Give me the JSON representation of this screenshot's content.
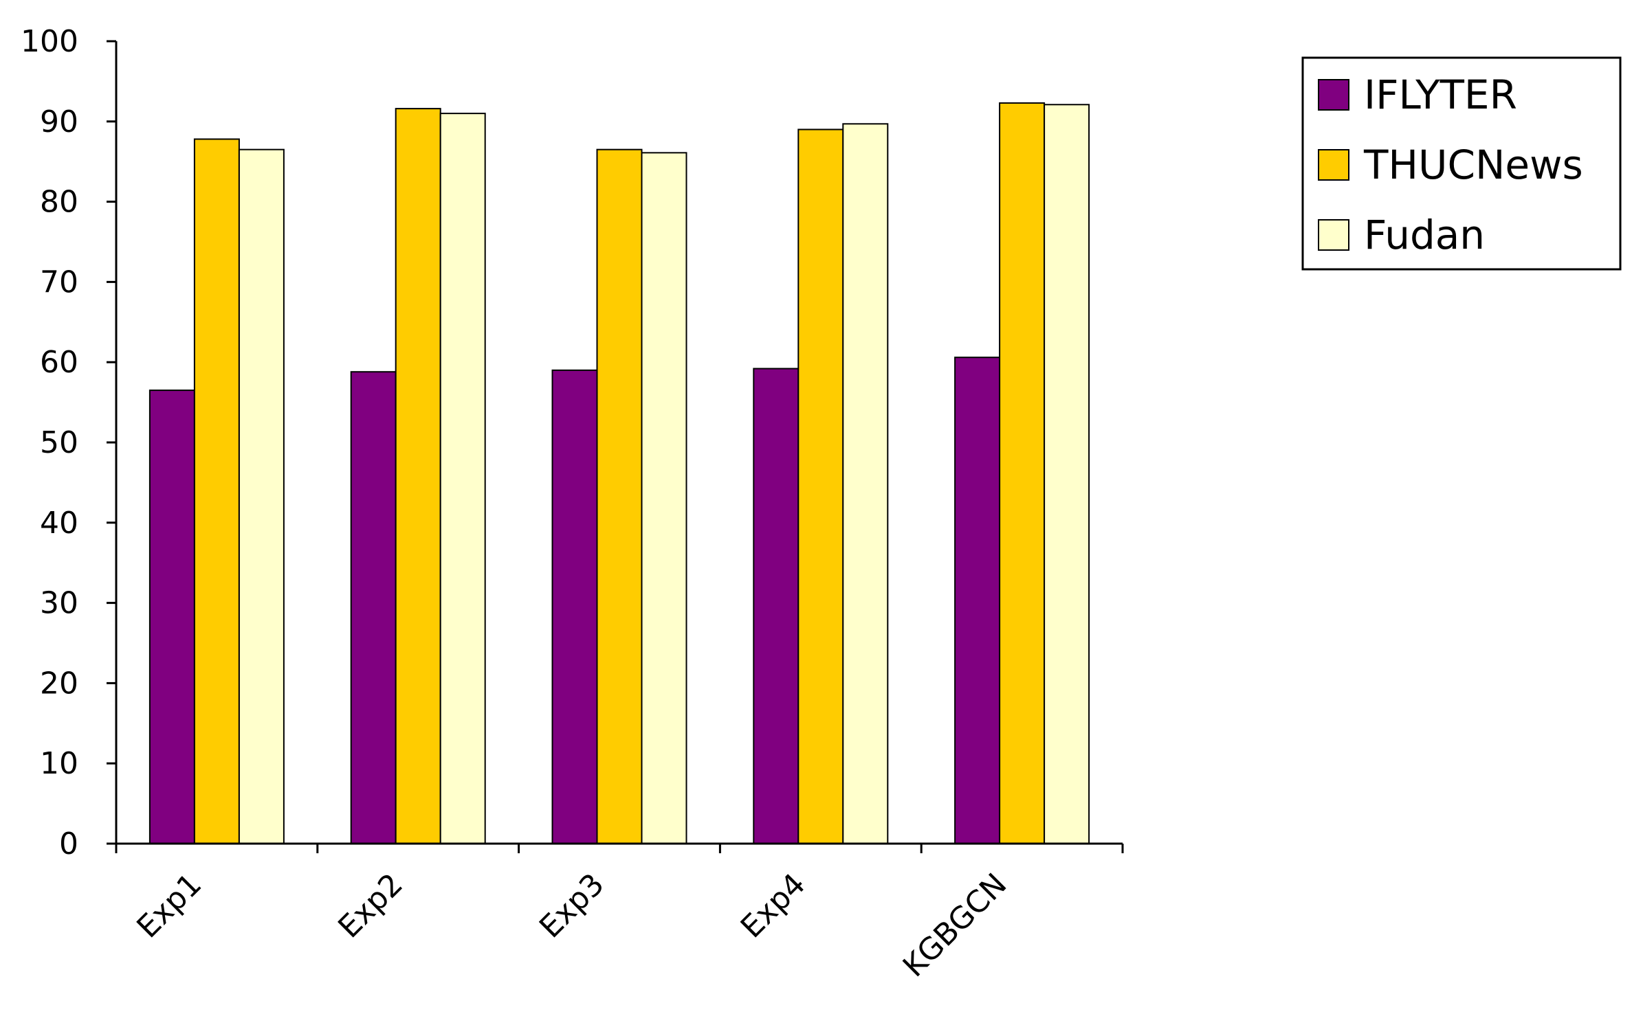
{
  "chart_data": {
    "type": "bar",
    "title": "",
    "xlabel": "",
    "ylabel": "",
    "categories": [
      "Exp1",
      "Exp2",
      "Exp3",
      "Exp4",
      "KGBGCN"
    ],
    "series": [
      {
        "name": "IFLYTER",
        "color": "#800080",
        "values": [
          56.5,
          58.8,
          59.0,
          59.2,
          60.6
        ]
      },
      {
        "name": "THUCNews",
        "color": "#FFCC00",
        "values": [
          87.8,
          91.6,
          86.5,
          89.0,
          92.3
        ]
      },
      {
        "name": "Fudan",
        "color": "#FFFFCC",
        "values": [
          86.5,
          91.0,
          86.1,
          89.7,
          92.1
        ]
      }
    ],
    "ylim": [
      0,
      100
    ],
    "yticks": [
      0,
      10,
      20,
      30,
      40,
      50,
      60,
      70,
      80,
      90,
      100
    ],
    "grid": false,
    "legend_position": "top-right"
  }
}
